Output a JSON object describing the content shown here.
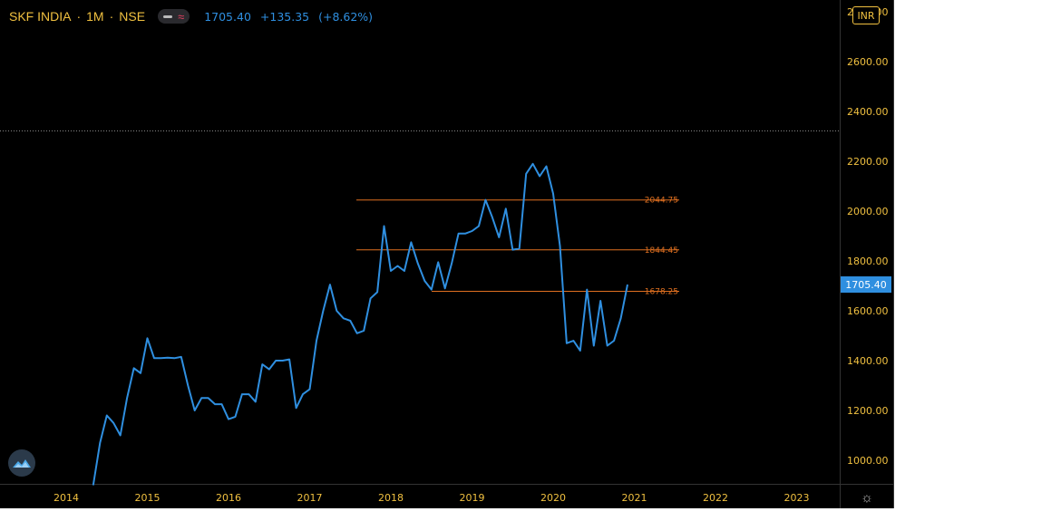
{
  "header": {
    "symbol": "SKF INDIA",
    "interval": "1M",
    "exchange": "NSE",
    "separator": "·",
    "quote": {
      "price": "1705.40",
      "change": "+135.35",
      "change_pct": "(+8.62%)"
    }
  },
  "currency_badge": "INR",
  "y_axis_top_label": "2800.00",
  "chart_data": {
    "type": "line",
    "title": "SKF INDIA · 1M · NSE",
    "x": [
      "2014-05",
      "2014-06",
      "2014-07",
      "2014-08",
      "2014-09",
      "2014-10",
      "2014-11",
      "2014-12",
      "2015-01",
      "2015-02",
      "2015-03",
      "2015-04",
      "2015-05",
      "2015-06",
      "2015-07",
      "2015-08",
      "2015-09",
      "2015-10",
      "2015-11",
      "2015-12",
      "2016-01",
      "2016-02",
      "2016-03",
      "2016-04",
      "2016-05",
      "2016-06",
      "2016-07",
      "2016-08",
      "2016-09",
      "2016-10",
      "2016-11",
      "2016-12",
      "2017-01",
      "2017-02",
      "2017-03",
      "2017-04",
      "2017-05",
      "2017-06",
      "2017-07",
      "2017-08",
      "2017-09",
      "2017-10",
      "2017-11",
      "2017-12",
      "2018-01",
      "2018-02",
      "2018-03",
      "2018-04",
      "2018-05",
      "2018-06",
      "2018-07",
      "2018-08",
      "2018-09",
      "2018-10",
      "2018-11",
      "2018-12",
      "2019-01",
      "2019-02",
      "2019-03",
      "2019-04",
      "2019-05",
      "2019-06",
      "2019-07",
      "2019-08",
      "2019-09",
      "2019-10",
      "2019-11",
      "2019-12",
      "2020-01",
      "2020-02",
      "2020-03",
      "2020-04",
      "2020-05",
      "2020-06",
      "2020-07",
      "2020-08",
      "2020-09",
      "2020-10",
      "2020-11",
      "2020-12"
    ],
    "series": [
      {
        "color": "#2f8fe0",
        "values": [
          900,
          1070,
          1180,
          1150,
          1100,
          1250,
          1370,
          1350,
          1490,
          1410,
          1410,
          1412,
          1410,
          1415,
          1300,
          1200,
          1250,
          1250,
          1225,
          1225,
          1165,
          1175,
          1265,
          1265,
          1235,
          1385,
          1365,
          1400,
          1400,
          1405,
          1210,
          1265,
          1285,
          1480,
          1600,
          1705,
          1600,
          1570,
          1560,
          1510,
          1520,
          1650,
          1675,
          1940,
          1760,
          1780,
          1760,
          1875,
          1790,
          1720,
          1685,
          1795,
          1690,
          1790,
          1910,
          1910,
          1920,
          1940,
          2045,
          1975,
          1895,
          2010,
          1845,
          1850,
          2150,
          2190,
          2140,
          2180,
          2070,
          1860,
          1470,
          1480,
          1440,
          1685,
          1460,
          1640,
          1460,
          1480,
          1570,
          1705
        ]
      }
    ],
    "levels": [
      {
        "label": "2044.75",
        "value": 2044.75
      },
      {
        "label": "1844.45",
        "value": 1844.45
      },
      {
        "label": "1678.25",
        "value": 1678.25
      }
    ],
    "last_price_label": "1705.40",
    "last_price": 1705.4,
    "y_ticks": [
      "1000.00",
      "1200.00",
      "1400.00",
      "1600.00",
      "1800.00",
      "2000.00",
      "2200.00",
      "2400.00",
      "2600.00"
    ],
    "x_ticks": [
      "2014",
      "2015",
      "2016",
      "2017",
      "2018",
      "2019",
      "2020",
      "2021",
      "2022",
      "2023"
    ],
    "dotted_level": 2322,
    "colors": {
      "line": "#2f8fe0",
      "level": "#e07020",
      "axis_text": "#f0c040",
      "background": "#000000"
    }
  }
}
